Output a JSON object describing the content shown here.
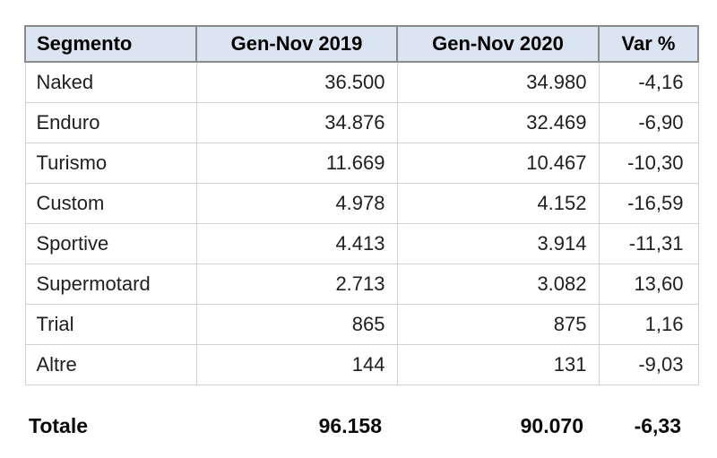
{
  "colors": {
    "header_bg": "#dbe5f1",
    "header_border": "#8a8a8a",
    "row_border": "#cdd2d9",
    "text": "#1f1f1f",
    "total_text": "#0a0a0a"
  },
  "table": {
    "columns": [
      "Segmento",
      "Gen-Nov 2019",
      "Gen-Nov 2020",
      "Var %"
    ],
    "rows": [
      {
        "segment": "Naked",
        "y2019": "36.500",
        "y2020": "34.980",
        "var": "-4,16"
      },
      {
        "segment": "Enduro",
        "y2019": "34.876",
        "y2020": "32.469",
        "var": "-6,90"
      },
      {
        "segment": "Turismo",
        "y2019": "11.669",
        "y2020": "10.467",
        "var": "-10,30"
      },
      {
        "segment": "Custom",
        "y2019": "4.978",
        "y2020": "4.152",
        "var": "-16,59"
      },
      {
        "segment": "Sportive",
        "y2019": "4.413",
        "y2020": "3.914",
        "var": "-11,31"
      },
      {
        "segment": "Supermotard",
        "y2019": "2.713",
        "y2020": "3.082",
        "var": "13,60"
      },
      {
        "segment": "Trial",
        "y2019": "865",
        "y2020": "875",
        "var": "1,16"
      },
      {
        "segment": "Altre",
        "y2019": "144",
        "y2020": "131",
        "var": "-9,03"
      }
    ],
    "total": {
      "segment": "Totale",
      "y2019": "96.158",
      "y2020": "90.070",
      "var": "-6,33"
    }
  },
  "chart_data": {
    "type": "table",
    "title": "",
    "columns": [
      "Segmento",
      "Gen-Nov 2019",
      "Gen-Nov 2020",
      "Var %"
    ],
    "rows": [
      [
        "Naked",
        36500,
        34980,
        -4.16
      ],
      [
        "Enduro",
        34876,
        32469,
        -6.9
      ],
      [
        "Turismo",
        11669,
        10467,
        -10.3
      ],
      [
        "Custom",
        4978,
        4152,
        -16.59
      ],
      [
        "Sportive",
        4413,
        3914,
        -11.31
      ],
      [
        "Supermotard",
        2713,
        3082,
        13.6
      ],
      [
        "Trial",
        865,
        875,
        1.16
      ],
      [
        "Altre",
        144,
        131,
        -9.03
      ]
    ],
    "total": [
      "Totale",
      96158,
      90070,
      -6.33
    ],
    "number_format": "it-IT (dot thousands separator, comma decimals)"
  }
}
